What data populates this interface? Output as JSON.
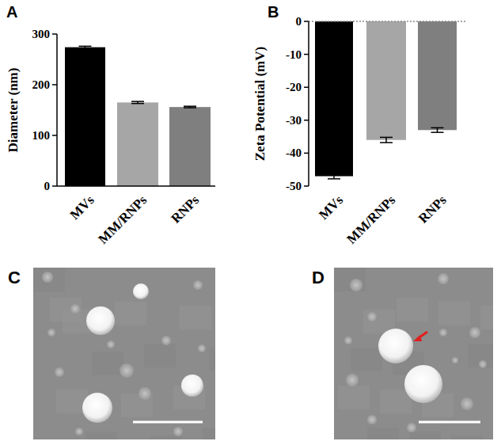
{
  "chart_data": [
    {
      "type": "bar",
      "title": "A",
      "y_label": "Diameter (nm)",
      "categories": [
        "MVs",
        "MM/RNPs",
        "RNPs"
      ],
      "values": [
        274,
        165,
        156
      ],
      "errors": [
        2,
        2,
        1.5
      ],
      "colors": [
        "#000000",
        "#a6a6a6",
        "#7f7f7f"
      ],
      "ylim": [
        0,
        300
      ],
      "yticks": [
        0,
        100,
        200,
        300
      ],
      "grid": false
    },
    {
      "type": "bar",
      "title": "B",
      "y_label": "Zeta Potential (mV)",
      "categories": [
        "MVs",
        "MM/RNPs",
        "RNPs"
      ],
      "values": [
        -47,
        -36,
        -33
      ],
      "errors": [
        0.8,
        0.8,
        0.7
      ],
      "colors": [
        "#000000",
        "#a6a6a6",
        "#7f7f7f"
      ],
      "ylim": [
        -50,
        0
      ],
      "yticks": [
        0,
        -10,
        -20,
        -30,
        -40,
        -50
      ],
      "grid": false
    }
  ],
  "images": [
    {
      "label": "C"
    },
    {
      "label": "D"
    }
  ]
}
